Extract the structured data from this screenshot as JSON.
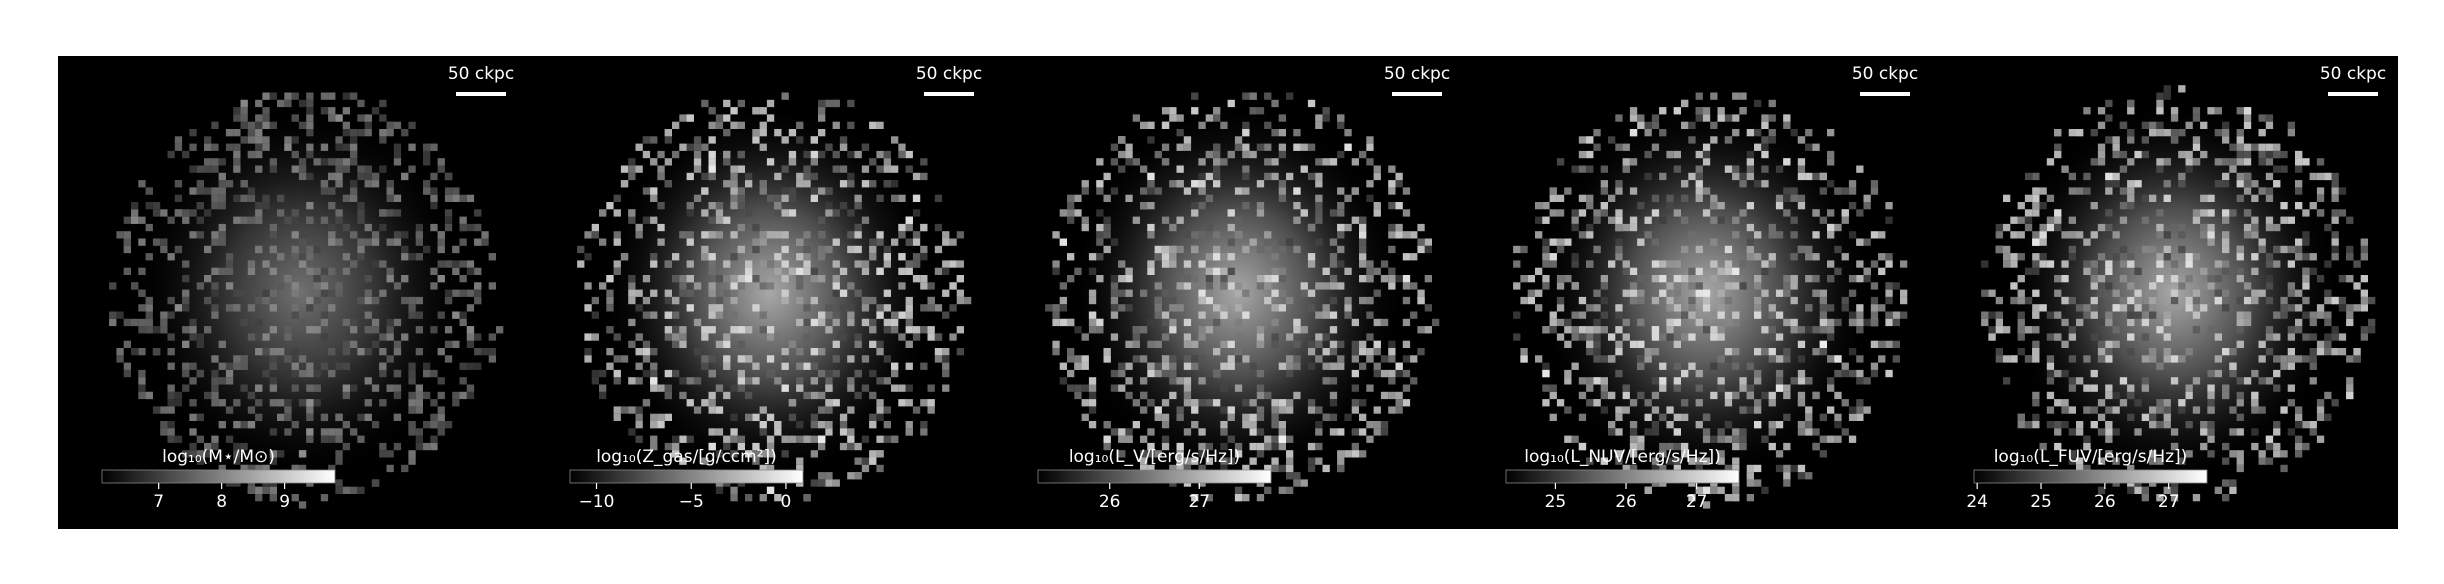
{
  "chart_data": [
    {
      "type": "image",
      "scalebar": "50 ckpc",
      "colorbar_label": "log₁₀(M⋆/M⊙)",
      "clim": [
        6.1,
        9.8
      ],
      "ticks": [
        7,
        8,
        9
      ],
      "cmap": [
        "#000000",
        "#ffffff"
      ]
    },
    {
      "type": "image",
      "scalebar": "50 ckpc",
      "colorbar_label": "log₁₀(Z_gas/[g/ccm²])",
      "clim": [
        -11.4,
        0.9
      ],
      "ticks": [
        {
          "value": -10,
          "label": "−10"
        },
        {
          "value": -5,
          "label": "−5"
        },
        0
      ],
      "cmap": [
        "#000000",
        "#ffffff"
      ]
    },
    {
      "type": "image",
      "scalebar": "50 ckpc",
      "colorbar_label": "log₁₀(L_V/[erg/s/Hz])",
      "clim": [
        25.2,
        27.8
      ],
      "ticks": [
        26,
        27
      ],
      "cmap": [
        "#000000",
        "#ffffff"
      ]
    },
    {
      "type": "image",
      "scalebar": "50 ckpc",
      "colorbar_label": "log₁₀(L_NUV/[erg/s/Hz])",
      "clim": [
        24.3,
        27.6
      ],
      "ticks": [
        25,
        26,
        27
      ],
      "cmap": [
        "#000000",
        "#ffffff"
      ]
    },
    {
      "type": "image",
      "scalebar": "50 ckpc",
      "colorbar_label": "log₁₀(L_FUV/[erg/s/Hz])",
      "clim": [
        23.95,
        27.6
      ],
      "ticks": [
        24,
        25,
        26,
        27
      ],
      "cmap": [
        "#000000",
        "#ffffff"
      ]
    }
  ]
}
